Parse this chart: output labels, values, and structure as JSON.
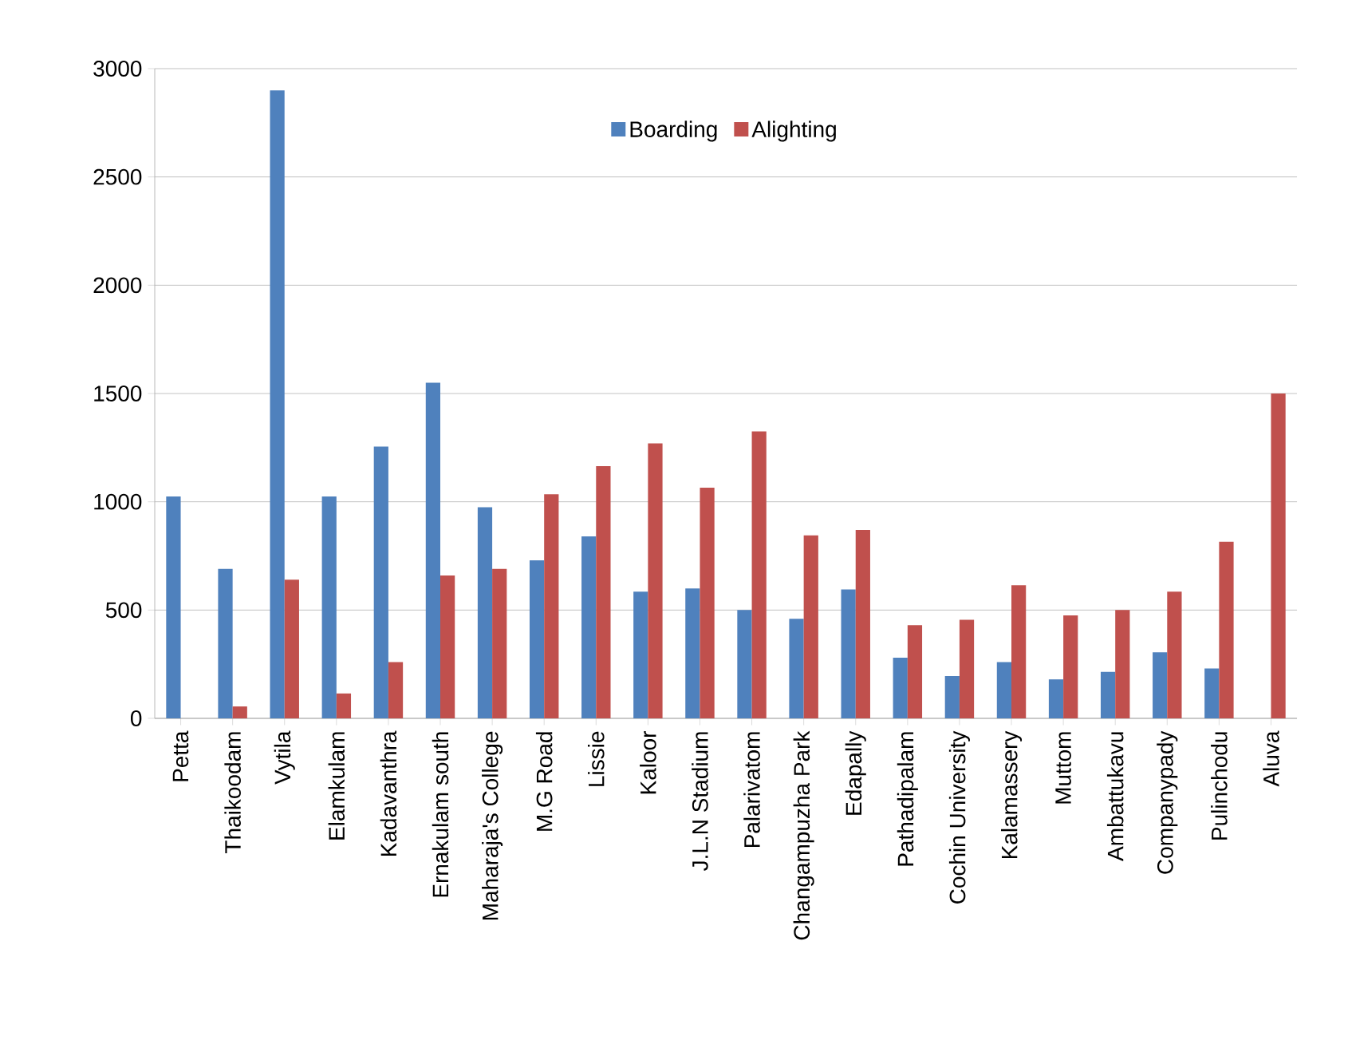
{
  "chart_data": {
    "type": "bar",
    "categories": [
      "Petta",
      "Thaikoodam",
      "Vytila",
      "Elamkulam",
      "Kadavanthra",
      "Ernakulam south",
      "Maharaja's College",
      "M.G Road",
      "Lissie",
      "Kaloor",
      "J.L.N Stadium",
      "Palarivatom",
      "Changampuzha Park",
      "Edapally",
      "Pathadipalam",
      "Cochin University",
      "Kalamassery",
      "Muttom",
      "Ambattukavu",
      "Companypady",
      "Pulinchodu",
      "Aluva"
    ],
    "series": [
      {
        "name": "Boarding",
        "color": "#4f81bd",
        "values": [
          1025,
          690,
          2900,
          1025,
          1255,
          1550,
          975,
          730,
          840,
          585,
          600,
          500,
          460,
          595,
          280,
          195,
          260,
          180,
          215,
          305,
          230,
          null
        ]
      },
      {
        "name": "Alighting",
        "color": "#c0504d",
        "values": [
          null,
          55,
          640,
          115,
          260,
          660,
          690,
          1035,
          1165,
          1270,
          1065,
          1325,
          845,
          870,
          430,
          455,
          615,
          475,
          500,
          585,
          815,
          1500
        ]
      }
    ],
    "ylim": [
      0,
      3000
    ],
    "yticks": [
      0,
      500,
      1000,
      1500,
      2000,
      2500,
      3000
    ],
    "grid": "y",
    "legend": "top"
  }
}
